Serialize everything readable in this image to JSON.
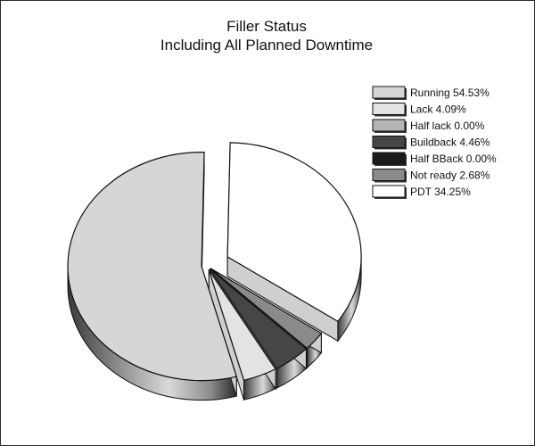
{
  "chart_data": {
    "type": "pie",
    "title": "Filler Status",
    "subtitle": "Including All Planned Downtime",
    "style": "3d-exploded",
    "legend_position": "right",
    "slices": [
      {
        "label": "Running 54.53%",
        "name": "Running",
        "value": 54.53,
        "color": "#d6d6d6",
        "explode": false
      },
      {
        "label": "Lack 4.09%",
        "name": "Lack",
        "value": 4.09,
        "color": "#e3e3e3",
        "explode": false
      },
      {
        "label": "Half lack 0.00%",
        "name": "Half lack",
        "value": 0.0,
        "color": "#b4b4b4",
        "explode": false
      },
      {
        "label": "Buildback 4.46%",
        "name": "Buildback",
        "value": 4.46,
        "color": "#464646",
        "explode": false
      },
      {
        "label": "Half BBack 0.00%",
        "name": "Half BBack",
        "value": 0.0,
        "color": "#1a1a1a",
        "explode": false
      },
      {
        "label": "Not ready 2.68%",
        "name": "Not ready",
        "value": 2.68,
        "color": "#8a8a8a",
        "explode": false
      },
      {
        "label": "PDT 34.25%",
        "name": "PDT",
        "value": 34.25,
        "color": "#ffffff",
        "explode": true
      }
    ]
  }
}
